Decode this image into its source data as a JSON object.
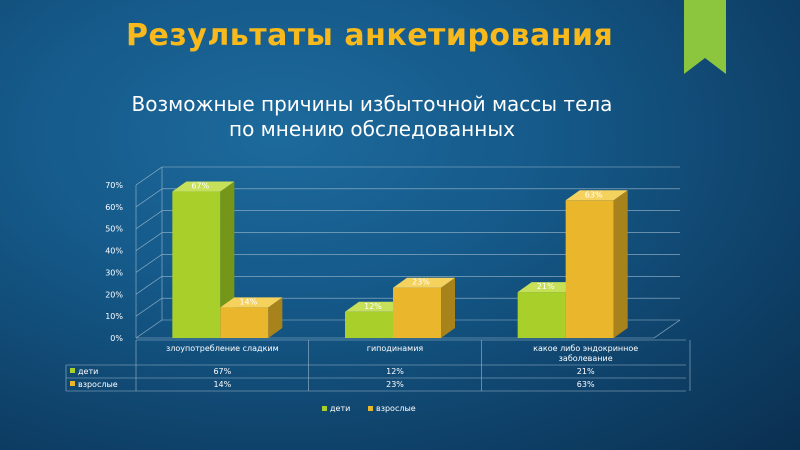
{
  "slide": {
    "title": "Результаты анкетирования",
    "subtitle_line1": "Возможные причины избыточной массы тела",
    "subtitle_line2": "по мнению обследованных"
  },
  "colors": {
    "deti": "#a8cf2a",
    "deti_dark": "#76961a",
    "deti_top": "#c7e05a",
    "vzroslye": "#eab72c",
    "vzroslye_dark": "#a8831c",
    "vzroslye_top": "#f5d25e",
    "title": "#f7b91c",
    "deco_green": "#8cc63f"
  },
  "chart_data": {
    "type": "bar",
    "style": "3d-clustered-column-with-data-table",
    "categories": [
      "злоупотребление сладким",
      "гиподинамия",
      "какое либо эндокринное заболевание"
    ],
    "series": [
      {
        "name": "дети",
        "values": [
          67,
          12,
          21
        ],
        "labels": [
          "67%",
          "12%",
          "21%"
        ]
      },
      {
        "name": "взрослые",
        "values": [
          14,
          23,
          63
        ],
        "labels": [
          "14%",
          "23%",
          "63%"
        ]
      }
    ],
    "y_ticks": [
      "0%",
      "10%",
      "20%",
      "30%",
      "40%",
      "50%",
      "60%",
      "70%"
    ],
    "ylim": [
      0,
      70
    ],
    "grid": true,
    "legend_position": "bottom"
  }
}
